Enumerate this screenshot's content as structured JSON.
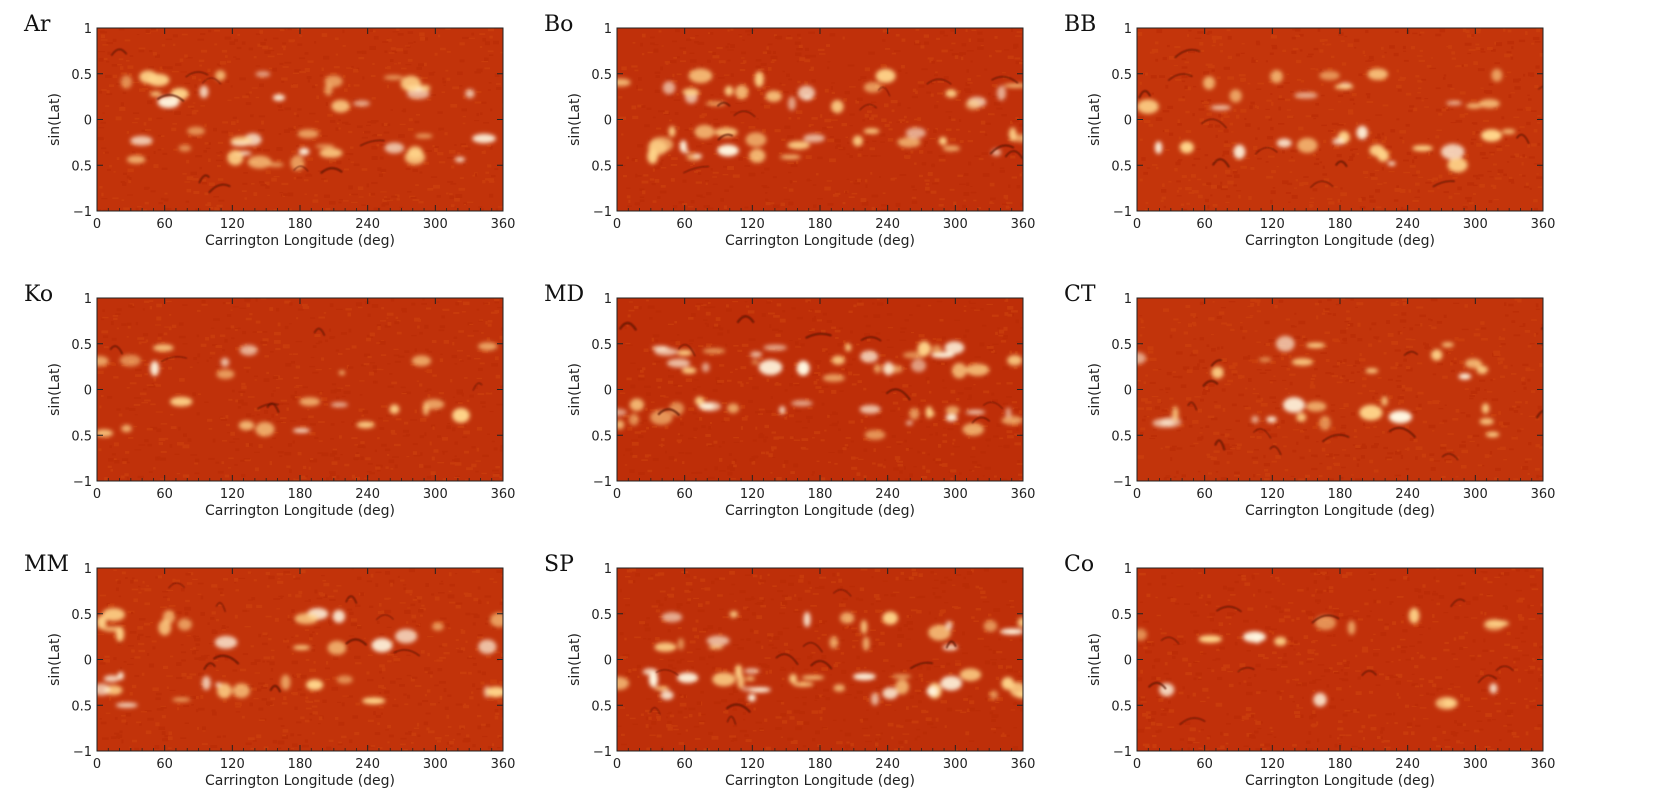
{
  "chart_data": [
    {
      "type": "heatmap",
      "label": "Ar",
      "xlabel": "Carrington Longitude (deg)",
      "ylabel": "sin(Lat)",
      "xlim": [
        0,
        360
      ],
      "ylim": [
        -1,
        1
      ],
      "xticks": [
        "0",
        "60",
        "120",
        "180",
        "240",
        "300",
        "360"
      ],
      "yticks": [
        "1",
        "0.5",
        "0",
        "0.5",
        "−1"
      ],
      "colormap": [
        "#b82a05",
        "#d0440e",
        "#ffd58a",
        "#fff6e0"
      ],
      "background": "#c2330a",
      "intensity": 1.1,
      "dark_features": 0.9
    },
    {
      "type": "heatmap",
      "label": "Bo",
      "xlabel": "Carrington Longitude (deg)",
      "ylabel": "sin(Lat)",
      "xlim": [
        0,
        360
      ],
      "ylim": [
        -1,
        1
      ],
      "xticks": [
        "0",
        "60",
        "120",
        "180",
        "240",
        "300",
        "360"
      ],
      "yticks": [
        "1",
        "0.5",
        "0",
        "0.5",
        "−1"
      ],
      "colormap": [
        "#b82a05",
        "#d0440e",
        "#ffd58a",
        "#fff6e0"
      ],
      "background": "#c0300a",
      "intensity": 1.2,
      "dark_features": 1.0
    },
    {
      "type": "heatmap",
      "label": "BB",
      "xlabel": "Carrington Longitude (deg)",
      "ylabel": "sin(Lat)",
      "xlim": [
        0,
        360
      ],
      "ylim": [
        -1,
        1
      ],
      "xticks": [
        "0",
        "60",
        "120",
        "180",
        "240",
        "300",
        "360"
      ],
      "yticks": [
        "1",
        "0.5",
        "0",
        "0.5",
        "−1"
      ],
      "colormap": [
        "#b82a05",
        "#d0440e",
        "#ffd58a",
        "#fff6e0"
      ],
      "background": "#c4350b",
      "intensity": 0.8,
      "dark_features": 1.1
    },
    {
      "type": "heatmap",
      "label": "Ko",
      "xlabel": "Carrington Longitude (deg)",
      "ylabel": "sin(Lat)",
      "xlim": [
        0,
        360
      ],
      "ylim": [
        -1,
        1
      ],
      "xticks": [
        "0",
        "60",
        "120",
        "180",
        "240",
        "300",
        "360"
      ],
      "yticks": [
        "1",
        "0.5",
        "0",
        "0.5",
        "−1"
      ],
      "colormap": [
        "#b82a05",
        "#d0440e",
        "#ffd58a",
        "#fff6e0"
      ],
      "background": "#c0310a",
      "intensity": 0.6,
      "dark_features": 0.6
    },
    {
      "type": "heatmap",
      "label": "MD",
      "xlabel": "Carrington Longitude (deg)",
      "ylabel": "sin(Lat)",
      "xlim": [
        0,
        360
      ],
      "ylim": [
        -1,
        1
      ],
      "xticks": [
        "0",
        "60",
        "120",
        "180",
        "240",
        "300",
        "360"
      ],
      "yticks": [
        "1",
        "0.5",
        "0",
        "0.5",
        "−1"
      ],
      "colormap": [
        "#b82a05",
        "#d0440e",
        "#ffd58a",
        "#fff6e0"
      ],
      "background": "#be2e08",
      "intensity": 1.4,
      "dark_features": 0.9
    },
    {
      "type": "heatmap",
      "label": "CT",
      "xlabel": "Carrington Longitude (deg)",
      "ylabel": "sin(Lat)",
      "xlim": [
        0,
        360
      ],
      "ylim": [
        -1,
        1
      ],
      "xticks": [
        "0",
        "60",
        "120",
        "180",
        "240",
        "300",
        "360"
      ],
      "yticks": [
        "1",
        "0.5",
        "0",
        "0.5",
        "−1"
      ],
      "colormap": [
        "#b82a05",
        "#d0440e",
        "#ffd58a",
        "#fff6e0"
      ],
      "background": "#c2340b",
      "intensity": 0.7,
      "dark_features": 1.2
    },
    {
      "type": "heatmap",
      "label": "MM",
      "xlabel": "Carrington Longitude (deg)",
      "ylabel": "sin(Lat)",
      "xlim": [
        0,
        360
      ],
      "ylim": [
        -1,
        1
      ],
      "xticks": [
        "0",
        "60",
        "120",
        "180",
        "240",
        "300",
        "360"
      ],
      "yticks": [
        "1",
        "0.5",
        "0",
        "0.5",
        "−1"
      ],
      "colormap": [
        "#b82a05",
        "#d0440e",
        "#ffd58a",
        "#fff6e0"
      ],
      "background": "#c2330a",
      "intensity": 0.9,
      "dark_features": 0.9
    },
    {
      "type": "heatmap",
      "label": "SP",
      "xlabel": "Carrington Longitude (deg)",
      "ylabel": "sin(Lat)",
      "xlim": [
        0,
        360
      ],
      "ylim": [
        -1,
        1
      ],
      "xticks": [
        "0",
        "60",
        "120",
        "180",
        "240",
        "300",
        "360"
      ],
      "yticks": [
        "1",
        "0.5",
        "0",
        "0.5",
        "−1"
      ],
      "colormap": [
        "#b82a05",
        "#d0440e",
        "#ffd58a",
        "#fff6e0"
      ],
      "background": "#be2f09",
      "intensity": 1.3,
      "dark_features": 1.0
    },
    {
      "type": "heatmap",
      "label": "Co",
      "xlabel": "Carrington Longitude (deg)",
      "ylabel": "sin(Lat)",
      "xlim": [
        0,
        360
      ],
      "ylim": [
        -1,
        1
      ],
      "xticks": [
        "0",
        "60",
        "120",
        "180",
        "240",
        "300",
        "360"
      ],
      "yticks": [
        "1",
        "0.5",
        "0",
        "0.5",
        "−1"
      ],
      "colormap": [
        "#b82a05",
        "#d0440e",
        "#ffd58a",
        "#fff6e0"
      ],
      "background": "#c1300a",
      "intensity": 0.4,
      "dark_features": 1.0
    }
  ]
}
